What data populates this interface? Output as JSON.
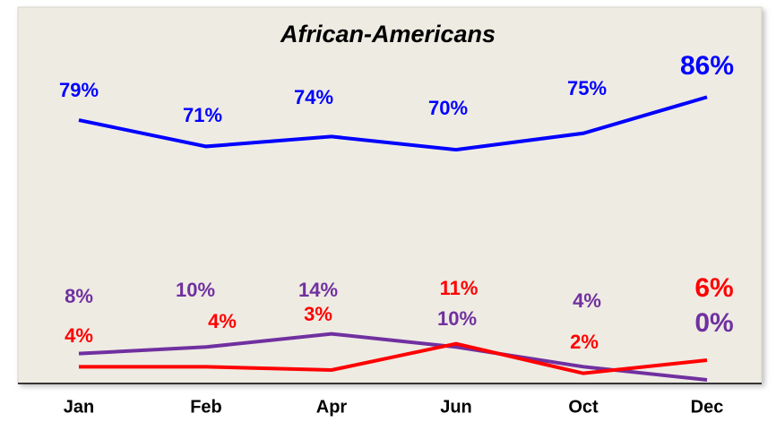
{
  "chart_data": {
    "type": "line",
    "title": "African-Americans",
    "categories": [
      "Jan",
      "Feb",
      "Apr",
      "Jun",
      "Oct",
      "Dec"
    ],
    "series": [
      {
        "color": "#0000ff",
        "values": [
          79,
          71,
          74,
          70,
          75,
          86
        ],
        "value_labels": [
          "79%",
          "71%",
          "74%",
          "70%",
          "75%",
          "86%"
        ]
      },
      {
        "color": "#7030a0",
        "values": [
          8,
          10,
          14,
          10,
          4,
          0
        ],
        "value_labels": [
          "8%",
          "10%",
          "14%",
          "10%",
          "4%",
          "0%"
        ]
      },
      {
        "color": "#ff0000",
        "values": [
          4,
          4,
          3,
          11,
          2,
          6
        ],
        "value_labels": [
          "4%",
          "4%",
          "3%",
          "11%",
          "2%",
          "6%"
        ]
      }
    ]
  }
}
